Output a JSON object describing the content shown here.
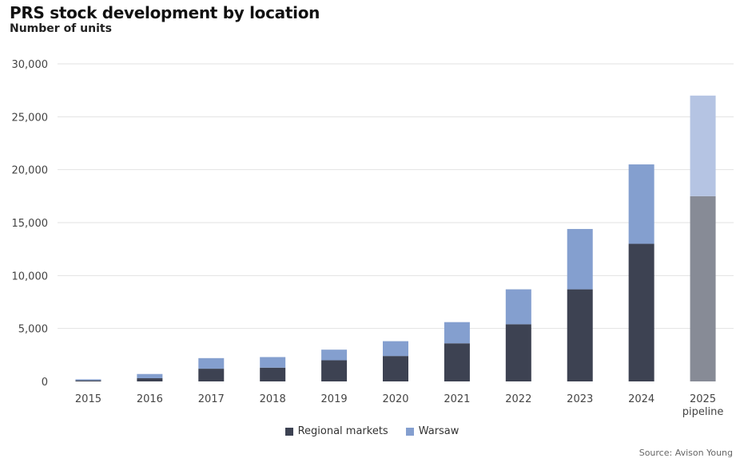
{
  "colors": {
    "regional": "#3d4252",
    "warsaw": "#849fcf",
    "regional_pipeline": "#878b96",
    "warsaw_pipeline": "#b5c4e3",
    "grid": "#e2e2e2"
  },
  "legend": {
    "regional_label": "Regional markets",
    "warsaw_label": "Warsaw"
  },
  "source": "Source: Avison Young",
  "chart_data": {
    "type": "bar",
    "stacked": true,
    "title": "PRS stock development by location",
    "subtitle": "Number of units",
    "categories": [
      "2015",
      "2016",
      "2017",
      "2018",
      "2019",
      "2020",
      "2021",
      "2022",
      "2023",
      "2024",
      "2025 pipeline"
    ],
    "series": [
      {
        "name": "Regional markets",
        "values": [
          100,
          300,
          1200,
          1300,
          2000,
          2400,
          3600,
          5400,
          8700,
          13000,
          17500
        ]
      },
      {
        "name": "Warsaw",
        "values": [
          100,
          400,
          1000,
          1000,
          1000,
          1400,
          2000,
          3300,
          5700,
          7500,
          9500
        ]
      }
    ],
    "ylim": [
      0,
      30000
    ],
    "yticks": [
      0,
      5000,
      10000,
      15000,
      20000,
      25000,
      30000
    ],
    "ytick_labels": [
      "0",
      "5,000",
      "10,000",
      "15,000",
      "20,000",
      "25,000",
      "30,000"
    ],
    "grid": true,
    "legend_position": "bottom",
    "highlighted_categories": [
      "2025 pipeline"
    ]
  }
}
